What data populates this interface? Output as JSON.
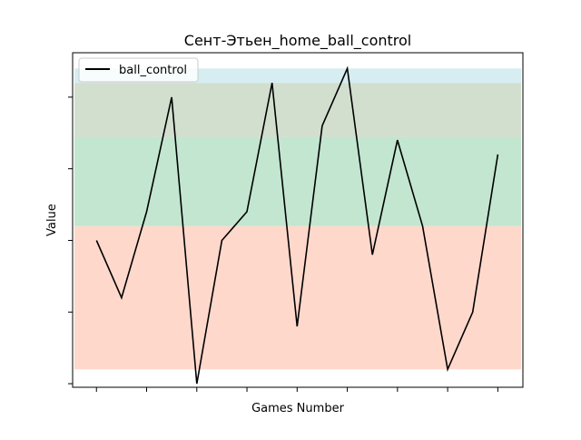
{
  "chart_data": {
    "type": "line",
    "title": "Сент-Этьен_home_ball_control",
    "xlabel": "Games Number",
    "ylabel": "Value",
    "x": [
      1,
      2,
      3,
      4,
      5,
      6,
      7,
      8,
      9,
      10,
      11,
      12,
      13,
      14,
      15,
      16,
      17
    ],
    "series": [
      {
        "name": "ball_control",
        "color": "#000000",
        "values": [
          57,
          53,
          59,
          67,
          47,
          57,
          59,
          68,
          51,
          65,
          69,
          56,
          64,
          58,
          48,
          52,
          63
        ]
      }
    ],
    "xlim": [
      0.05,
      18.0
    ],
    "ylim": [
      46.75,
      70.1
    ],
    "x_ticks": [
      1,
      3,
      5,
      7,
      9,
      11,
      13,
      15,
      17
    ],
    "y_ticks": [
      47,
      52,
      57,
      62,
      67
    ],
    "tick_labels_visible": false,
    "bands": [
      {
        "from": 48,
        "to": 58,
        "color": "#ffd8cc"
      },
      {
        "from": 58,
        "to": 64.2,
        "color": "#c2e6cf"
      },
      {
        "from": 64.2,
        "to": 68,
        "color": "#d2dfcf"
      },
      {
        "from": 68,
        "to": 69,
        "color": "#d6edf1"
      }
    ],
    "legend": {
      "position": "top-left",
      "entries": [
        "ball_control"
      ]
    },
    "grid": false
  }
}
